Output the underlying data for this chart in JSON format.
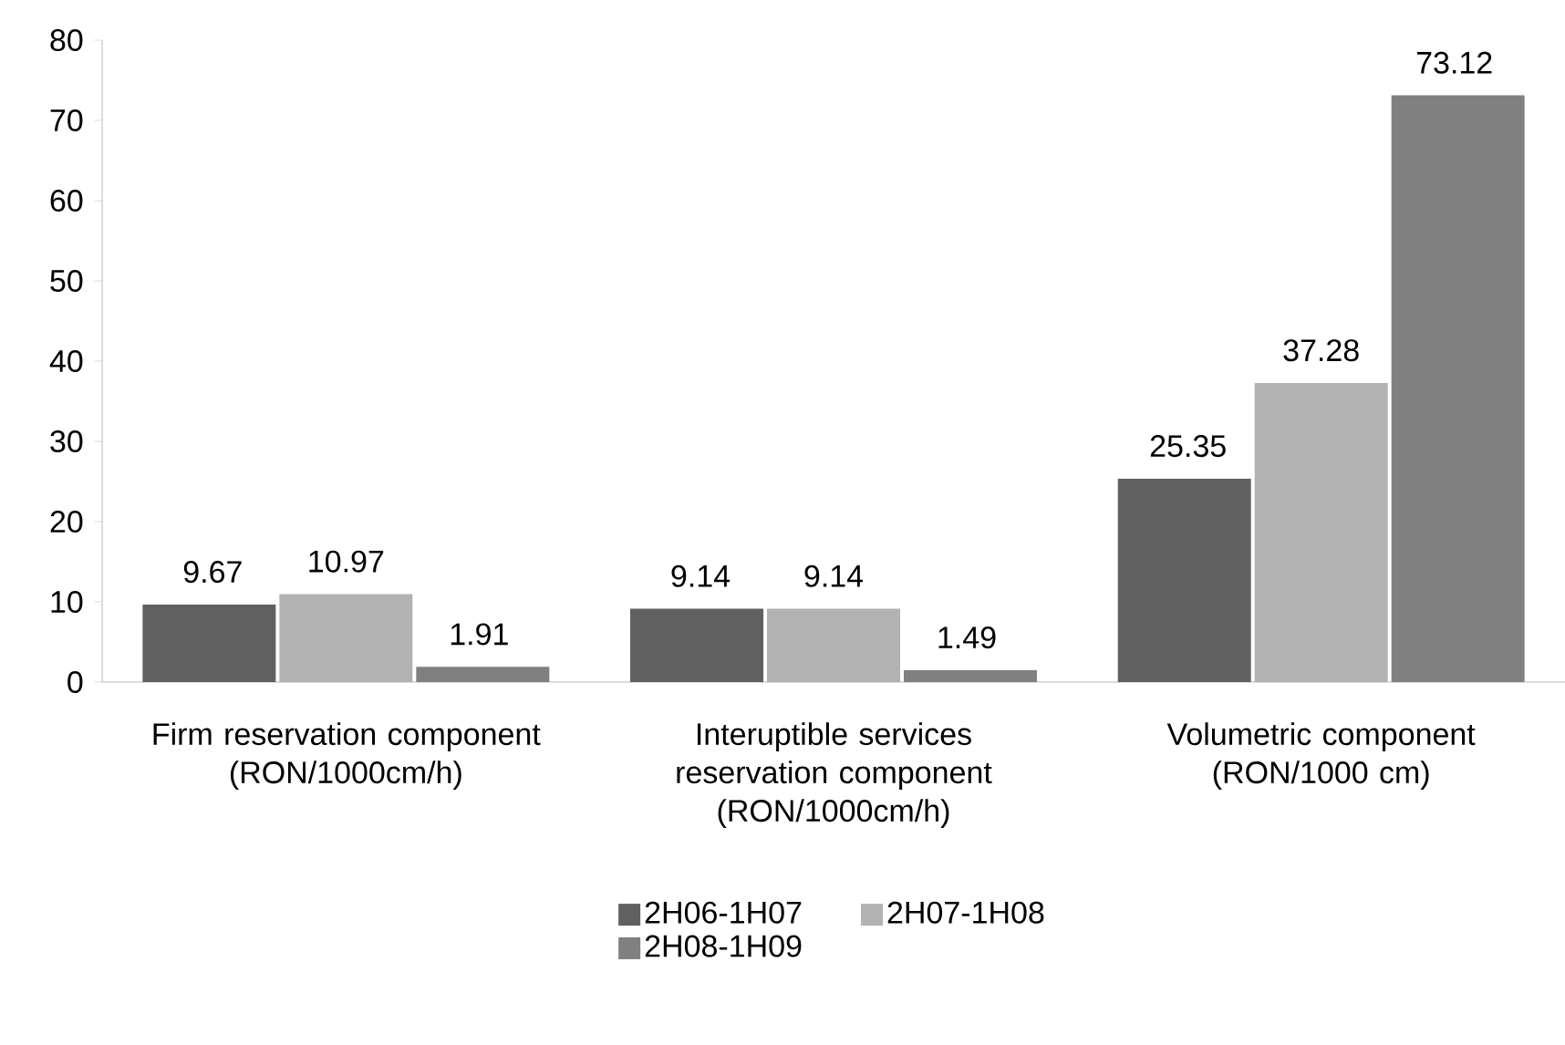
{
  "chart_data": {
    "type": "bar",
    "categories": [
      "Firm reservation component (RON/1000cm/h)",
      "Interuptible services reservation component (RON/1000cm/h)",
      "Volumetric component (RON/1000 cm)"
    ],
    "series": [
      {
        "name": "2H06-1H07",
        "color": "#606060",
        "values": [
          9.67,
          9.14,
          25.35
        ]
      },
      {
        "name": "2H07-1H08",
        "color": "#b2b2b2",
        "values": [
          10.97,
          9.14,
          37.28
        ]
      },
      {
        "name": "2H08-1H09",
        "color": "#808080",
        "values": [
          1.91,
          1.49,
          73.12
        ]
      }
    ],
    "ylim": [
      0,
      80
    ],
    "yticks": [
      0,
      10,
      20,
      30,
      40,
      50,
      60,
      70,
      80
    ],
    "data_labels": true,
    "legend": "bottom"
  }
}
